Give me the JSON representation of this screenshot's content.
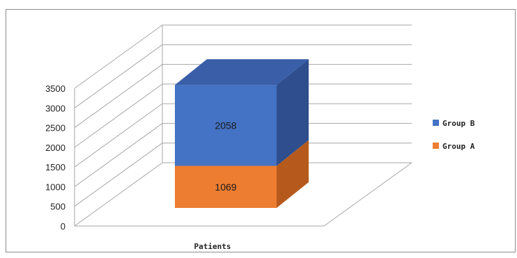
{
  "chart_data": {
    "type": "bar",
    "stacked": true,
    "three_d": true,
    "categories": [
      "Patients"
    ],
    "series": [
      {
        "name": "Group A",
        "values": [
          1069
        ],
        "color": "#ED7D31",
        "side_color": "#B55A1C",
        "top_color": "#C96A26"
      },
      {
        "name": "Group B",
        "values": [
          2058
        ],
        "color": "#4472C4",
        "side_color": "#2E4E8E",
        "top_color": "#3A5FA8"
      }
    ],
    "yticks": [
      "0",
      "500",
      "1000",
      "1500",
      "2000",
      "2500",
      "3000",
      "3500"
    ],
    "ylim": [
      0,
      3500
    ],
    "grid": true,
    "legend": "right"
  }
}
